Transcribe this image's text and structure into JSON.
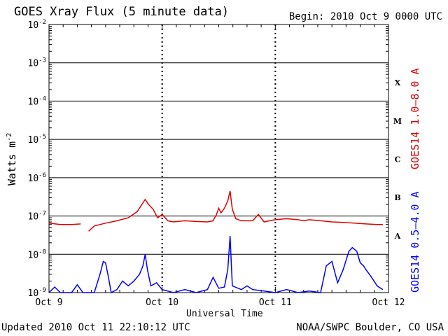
{
  "title": "GOES Xray Flux (5 minute data)",
  "begin_label": "Begin:  2010 Oct 9 0000 UTC",
  "updated_label": "Updated 2010 Oct 11 22:10:12 UTC",
  "credit_label": "NOAA/SWPC Boulder, CO USA",
  "chart_data": {
    "type": "line",
    "title": "GOES Xray Flux (5 minute data)",
    "xlabel": "Universal Time",
    "ylabel": "Watts m",
    "ylabel_superscript": "-2",
    "yscale": "log",
    "ylim": [
      1e-09,
      0.01
    ],
    "xlim_days": [
      0,
      3
    ],
    "x_ticks": [
      "Oct 9",
      "Oct 10",
      "Oct 11",
      "Oct 12"
    ],
    "y_ticks": [
      {
        "base": "10",
        "exp": "-9"
      },
      {
        "base": "10",
        "exp": "-8"
      },
      {
        "base": "10",
        "exp": "-7"
      },
      {
        "base": "10",
        "exp": "-6"
      },
      {
        "base": "10",
        "exp": "-5"
      },
      {
        "base": "10",
        "exp": "-4"
      },
      {
        "base": "10",
        "exp": "-3"
      },
      {
        "base": "10",
        "exp": "-2"
      }
    ],
    "flare_classes": [
      "A",
      "B",
      "C",
      "M",
      "X"
    ],
    "colors": {
      "long": "#e00000",
      "short": "#0000ff"
    },
    "series": [
      {
        "name": "GOES14 1.0–8.0 A",
        "color": "#e00000",
        "points": [
          [
            0.0,
            6.5e-08
          ],
          [
            0.1,
            6e-08
          ],
          [
            0.2,
            6e-08
          ],
          [
            0.28,
            6.2e-08
          ],
          [
            0.3,
            null
          ],
          [
            0.35,
            4e-08
          ],
          [
            0.4,
            5.5e-08
          ],
          [
            0.5,
            6.5e-08
          ],
          [
            0.6,
            7.5e-08
          ],
          [
            0.7,
            9e-08
          ],
          [
            0.78,
            1.3e-07
          ],
          [
            0.82,
            2e-07
          ],
          [
            0.85,
            2.7e-07
          ],
          [
            0.88,
            2e-07
          ],
          [
            0.92,
            1.5e-07
          ],
          [
            0.96,
            9e-08
          ],
          [
            1.0,
            1.1e-07
          ],
          [
            1.05,
            7.5e-08
          ],
          [
            1.1,
            7e-08
          ],
          [
            1.2,
            7.5e-08
          ],
          [
            1.3,
            7.2e-08
          ],
          [
            1.4,
            7e-08
          ],
          [
            1.45,
            7.5e-08
          ],
          [
            1.48,
            1.1e-07
          ],
          [
            1.5,
            1.6e-07
          ],
          [
            1.52,
            1.2e-07
          ],
          [
            1.55,
            1.6e-07
          ],
          [
            1.58,
            2.5e-07
          ],
          [
            1.6,
            4.5e-07
          ],
          [
            1.62,
            1.5e-07
          ],
          [
            1.65,
            8.5e-08
          ],
          [
            1.7,
            7.5e-08
          ],
          [
            1.8,
            7.5e-08
          ],
          [
            1.85,
            1.1e-07
          ],
          [
            1.9,
            7e-08
          ],
          [
            1.95,
            7.5e-08
          ],
          [
            2.0,
            8e-08
          ],
          [
            2.1,
            8.5e-08
          ],
          [
            2.2,
            8e-08
          ],
          [
            2.25,
            7.5e-08
          ],
          [
            2.3,
            8e-08
          ],
          [
            2.4,
            7.5e-08
          ],
          [
            2.5,
            7e-08
          ],
          [
            2.6,
            6.8e-08
          ],
          [
            2.7,
            6.5e-08
          ],
          [
            2.8,
            6.2e-08
          ],
          [
            2.9,
            6e-08
          ],
          [
            2.95,
            6e-08
          ]
        ]
      },
      {
        "name": "GOES14 0.5–4.0 A",
        "color": "#0000ff",
        "points": [
          [
            0.0,
            1e-09
          ],
          [
            0.05,
            1.4e-09
          ],
          [
            0.1,
            1e-09
          ],
          [
            0.2,
            1e-09
          ],
          [
            0.25,
            1.6e-09
          ],
          [
            0.3,
            1e-09
          ],
          [
            0.4,
            1e-09
          ],
          [
            0.45,
            3e-09
          ],
          [
            0.48,
            6.5e-09
          ],
          [
            0.5,
            6e-09
          ],
          [
            0.52,
            3e-09
          ],
          [
            0.55,
            1e-09
          ],
          [
            0.6,
            1.2e-09
          ],
          [
            0.65,
            2e-09
          ],
          [
            0.7,
            1.5e-09
          ],
          [
            0.75,
            2e-09
          ],
          [
            0.8,
            3e-09
          ],
          [
            0.83,
            5e-09
          ],
          [
            0.85,
            1e-08
          ],
          [
            0.87,
            4e-09
          ],
          [
            0.9,
            1.5e-09
          ],
          [
            0.95,
            1.8e-09
          ],
          [
            1.0,
            1.2e-09
          ],
          [
            1.1,
            1e-09
          ],
          [
            1.2,
            1.2e-09
          ],
          [
            1.3,
            1e-09
          ],
          [
            1.4,
            1.2e-09
          ],
          [
            1.45,
            2.5e-09
          ],
          [
            1.5,
            1.3e-09
          ],
          [
            1.55,
            1.4e-09
          ],
          [
            1.58,
            4e-09
          ],
          [
            1.6,
            3e-08
          ],
          [
            1.62,
            1.5e-09
          ],
          [
            1.7,
            1.2e-09
          ],
          [
            1.75,
            1.5e-09
          ],
          [
            1.8,
            1.2e-09
          ],
          [
            1.9,
            1.1e-09
          ],
          [
            2.0,
            1e-09
          ],
          [
            2.1,
            1.2e-09
          ],
          [
            2.2,
            1e-09
          ],
          [
            2.3,
            1.1e-09
          ],
          [
            2.4,
            1e-09
          ],
          [
            2.45,
            5e-09
          ],
          [
            2.5,
            6.5e-09
          ],
          [
            2.55,
            1.8e-09
          ],
          [
            2.6,
            4e-09
          ],
          [
            2.65,
            1.2e-08
          ],
          [
            2.68,
            1.5e-08
          ],
          [
            2.72,
            1.2e-08
          ],
          [
            2.75,
            6e-09
          ],
          [
            2.78,
            5e-09
          ],
          [
            2.8,
            4e-09
          ],
          [
            2.85,
            2.5e-09
          ],
          [
            2.9,
            1.5e-09
          ],
          [
            2.95,
            1.2e-09
          ]
        ]
      }
    ]
  },
  "right_labels": {
    "red": "GOES14 1.0–8.0 A",
    "blue": "GOES14 0.5–4.0 A"
  }
}
